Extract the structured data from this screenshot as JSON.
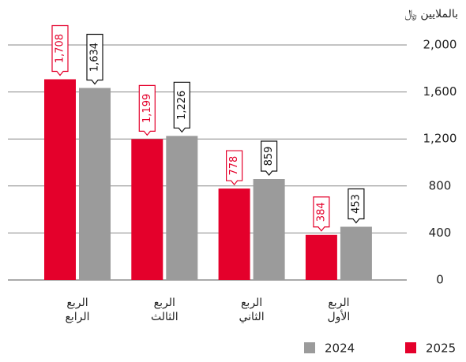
{
  "chart_data": {
    "type": "bar",
    "unit_label": "بالملايين ﷼",
    "categories": [
      "الربع الرابع",
      "الربع الثالث",
      "الربع الثاني",
      "الربع الأول"
    ],
    "series": [
      {
        "name": "2025",
        "color": "#e4002b",
        "values": [
          1708,
          1199,
          778,
          384
        ],
        "value_labels": [
          "1,708",
          "1,199",
          "778",
          "384"
        ]
      },
      {
        "name": "2024",
        "color": "#9b9b9b",
        "values": [
          1634,
          1226,
          859,
          453
        ],
        "value_labels": [
          "1,634",
          "1,226",
          "859",
          "453"
        ]
      }
    ],
    "ylim": [
      0,
      2000
    ],
    "yticks": [
      0,
      {
        "value": 400,
        "label": "400"
      },
      {
        "value": 800,
        "label": "800"
      },
      {
        "value": 1200,
        "label": "1,200"
      },
      {
        "value": 1600,
        "label": "1,600"
      },
      {
        "value": 2000,
        "label": "2,000"
      }
    ],
    "grid": true
  }
}
